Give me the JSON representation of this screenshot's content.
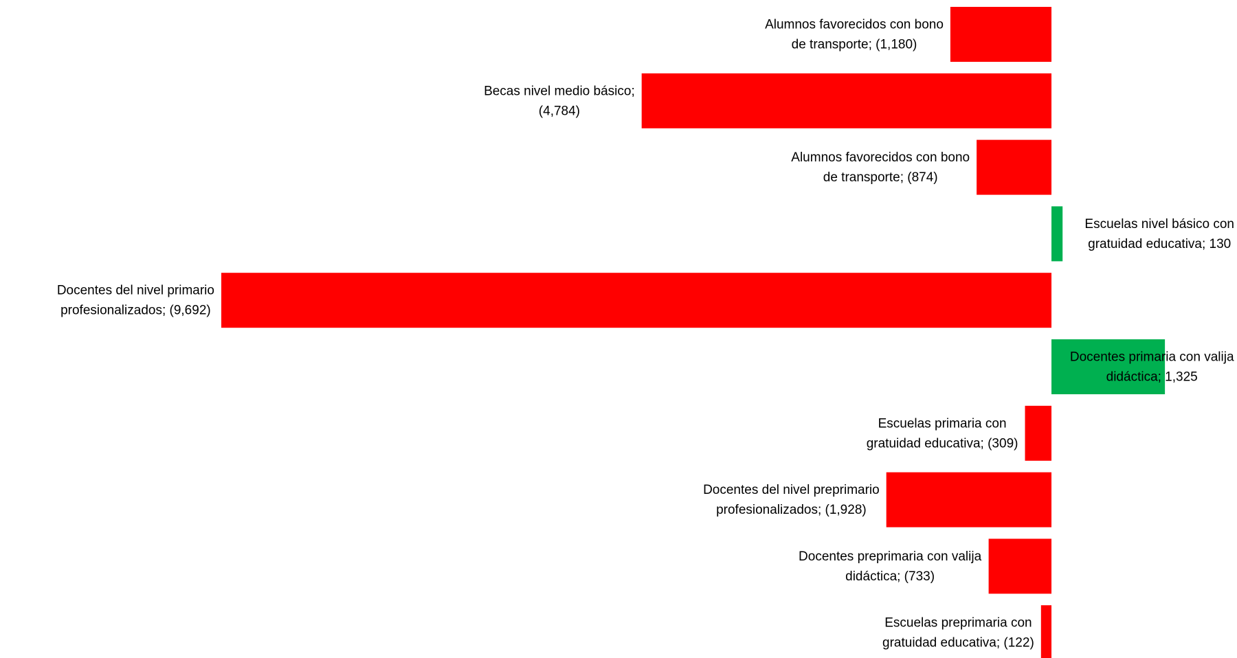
{
  "chart_data": {
    "type": "bar",
    "orientation": "horizontal",
    "title": "",
    "xlabel": "",
    "ylabel": "",
    "xlim": [
      -9692,
      1325
    ],
    "grid": false,
    "legend": "none",
    "colors": {
      "negative": "#ff0000",
      "positive": "#00b050"
    },
    "bars": [
      {
        "category": "Alumnos favorecidos con bono de transporte",
        "value": -1180,
        "label_lines": [
          "Alumnos favorecidos con bono",
          "de transporte;  (1,180)"
        ]
      },
      {
        "category": "Becas nivel medio básico",
        "value": -4784,
        "label_lines": [
          "Becas nivel medio básico;",
          "(4,784)"
        ]
      },
      {
        "category": "Alumnos favorecidos con bono de transporte",
        "value": -874,
        "label_lines": [
          "Alumnos favorecidos con bono",
          "de transporte;  (874)"
        ]
      },
      {
        "category": "Escuelas nivel básico con gratuidad educativa",
        "value": 130,
        "label_lines": [
          "Escuelas nivel básico con",
          "gratuidad educativa;  130"
        ]
      },
      {
        "category": "Docentes del nivel primario profesionalizados",
        "value": -9692,
        "label_lines": [
          "Docentes del nivel primario",
          "profesionalizados;  (9,692)"
        ]
      },
      {
        "category": "Docentes primaria con valija didáctica",
        "value": 1325,
        "label_lines": [
          "Docentes primaria con valija",
          "didáctica;  1,325"
        ]
      },
      {
        "category": "Escuelas primaria con gratuidad educativa",
        "value": -309,
        "label_lines": [
          "Escuelas primaria con",
          "gratuidad educativa;  (309)"
        ]
      },
      {
        "category": "Docentes del nivel preprimario profesionalizados",
        "value": -1928,
        "label_lines": [
          "Docentes del nivel preprimario",
          "profesionalizados;  (1,928)"
        ]
      },
      {
        "category": "Docentes preprimaria con valija didáctica",
        "value": -733,
        "label_lines": [
          "Docentes preprimaria con valija",
          "didáctica;  (733)"
        ]
      },
      {
        "category": "Escuelas preprimaria con gratuidad educativa",
        "value": -122,
        "label_lines": [
          "Escuelas preprimaria con",
          "gratuidad educativa;  (122)"
        ]
      }
    ]
  }
}
